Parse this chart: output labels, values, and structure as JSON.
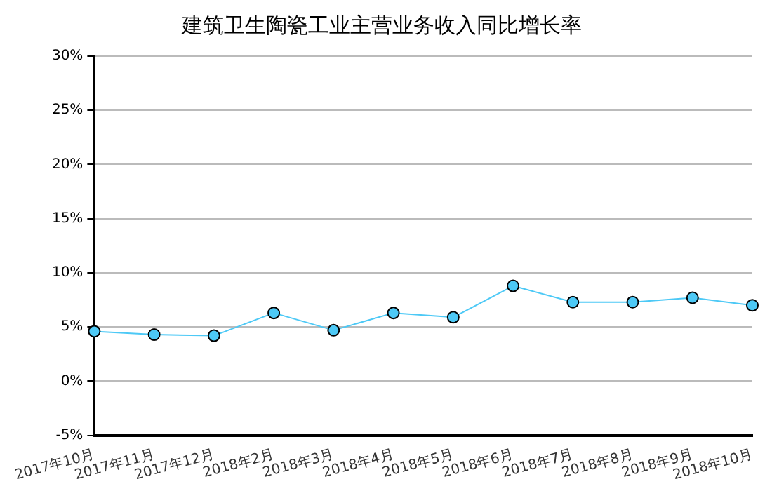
{
  "chart_data": {
    "type": "line",
    "title": "建筑卫生陶瓷工业主营业务收入同比增长率",
    "categories": [
      "2017年10月",
      "2017年11月",
      "2017年12月",
      "2018年2月",
      "2018年3月",
      "2018年4月",
      "2018年5月",
      "2018年6月",
      "2018年7月",
      "2018年8月",
      "2018年9月",
      "2018年10月"
    ],
    "series": [
      {
        "color": "#4dc9f6",
        "values": [
          4.6,
          4.3,
          4.2,
          6.3,
          4.7,
          6.3,
          5.9,
          8.8,
          7.3,
          7.3,
          7.7,
          7.0
        ]
      }
    ],
    "ylim": [
      -5,
      30
    ],
    "yticks": [
      {
        "value": -5,
        "label": "-5%"
      },
      {
        "value": 0,
        "label": "0%"
      },
      {
        "value": 5,
        "label": "5%"
      },
      {
        "value": 10,
        "label": "10%"
      },
      {
        "value": 15,
        "label": "15%"
      },
      {
        "value": 20,
        "label": "20%"
      },
      {
        "value": 25,
        "label": "25%"
      },
      {
        "value": 30,
        "label": "30%"
      }
    ],
    "grid": "y",
    "marker": "circle",
    "line_style": "solid"
  }
}
